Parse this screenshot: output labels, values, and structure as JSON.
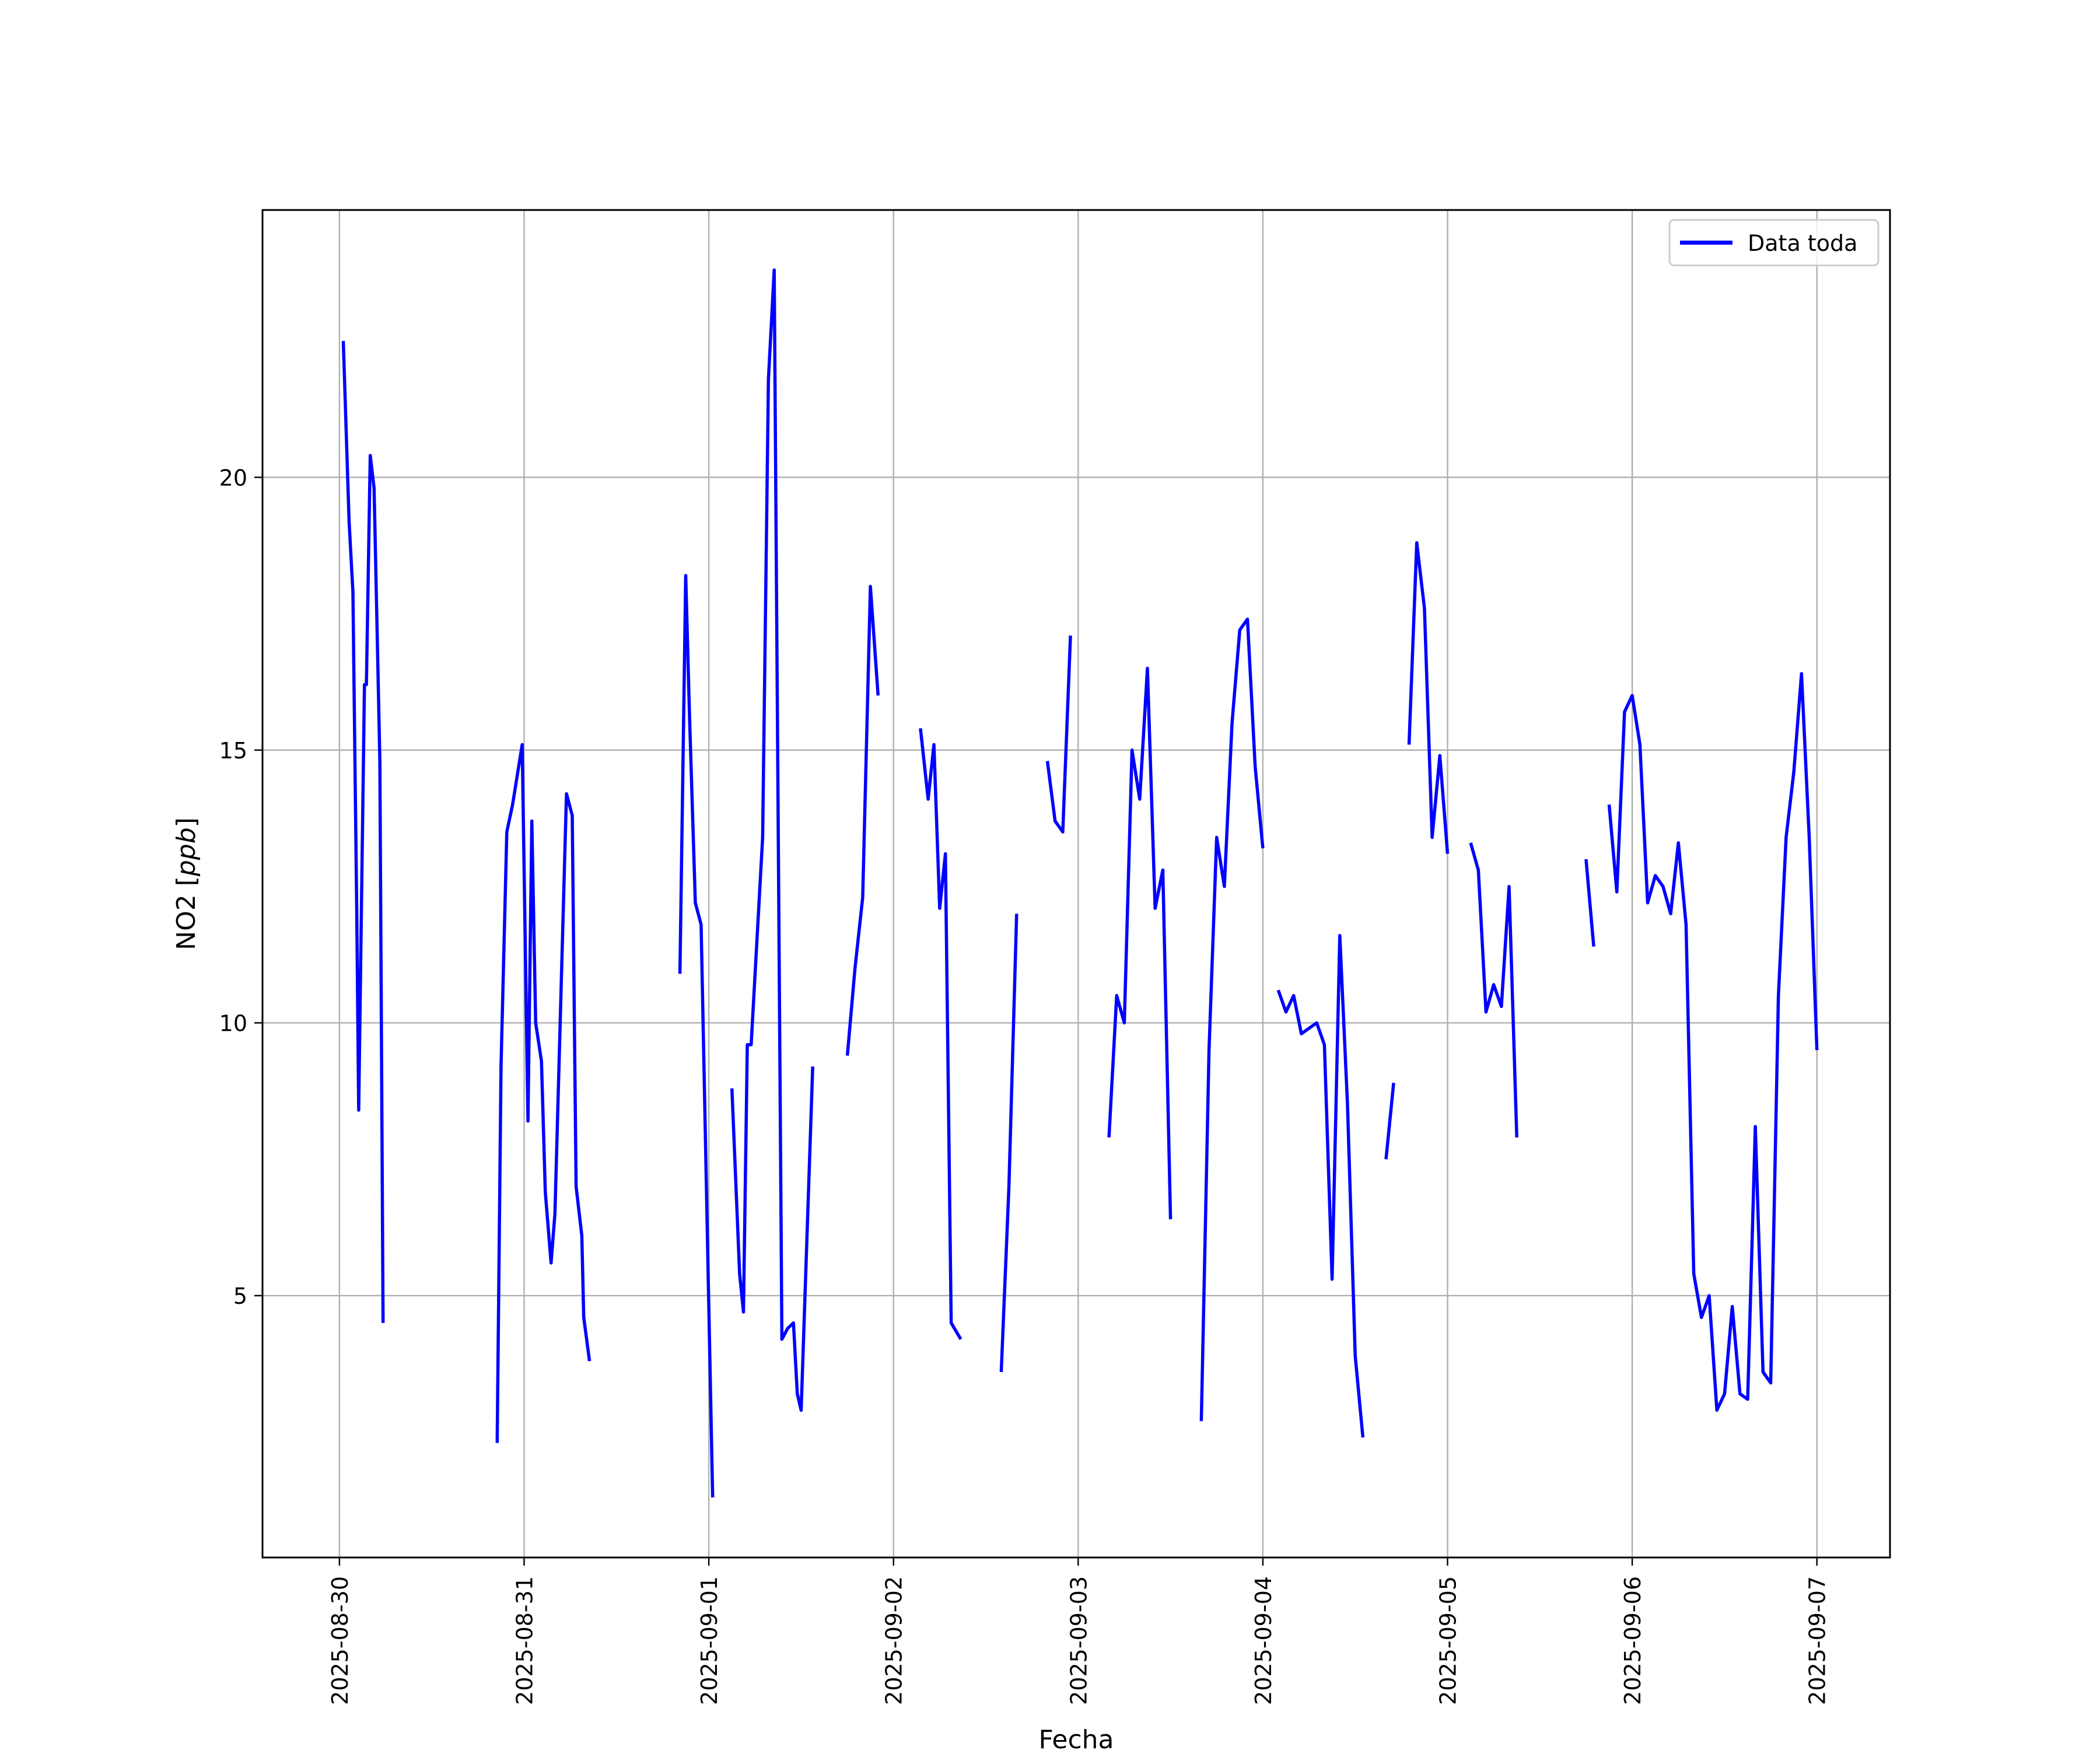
{
  "chart_data": {
    "type": "line",
    "title": "",
    "xlabel": "Fecha",
    "ylabel": "NO2 [ppb]",
    "ylabel_parts": {
      "main": "NO2 [",
      "unit": "ppb",
      "close": "]"
    },
    "x_ticks": [
      "2025-08-30",
      "2025-08-31",
      "2025-09-01",
      "2025-09-02",
      "2025-09-03",
      "2025-09-04",
      "2025-09-05",
      "2025-09-06",
      "2025-09-07"
    ],
    "y_ticks": [
      5,
      10,
      15,
      20
    ],
    "xlim": [
      "2025-08-29T14:00",
      "2025-09-07T09:30"
    ],
    "ylim": [
      0.2,
      24.9
    ],
    "grid": true,
    "legend_position": "top-right",
    "series": [
      {
        "name": "Data toda",
        "color": "#0000ff",
        "segments": [
          [
            [
              "2025-08-30T00:30",
              22.5
            ],
            [
              "2025-08-30T01:15",
              19.2
            ],
            [
              "2025-08-30T01:45",
              17.9
            ],
            [
              "2025-08-30T02:15",
              12.0
            ],
            [
              "2025-08-30T02:30",
              8.4
            ],
            [
              "2025-08-30T03:15",
              16.2
            ],
            [
              "2025-08-30T03:30",
              16.2
            ],
            [
              "2025-08-30T04:00",
              20.4
            ],
            [
              "2025-08-30T04:30",
              19.8
            ],
            [
              "2025-08-30T05:15",
              14.8
            ],
            [
              "2025-08-30T05:40",
              4.5
            ]
          ],
          [
            [
              "2025-08-30T20:30",
              2.3
            ],
            [
              "2025-08-30T21:00",
              9.2
            ],
            [
              "2025-08-30T21:45",
              13.5
            ],
            [
              "2025-08-30T22:30",
              14.0
            ],
            [
              "2025-08-30T23:45",
              15.1
            ],
            [
              "2025-08-31T00:30",
              8.2
            ],
            [
              "2025-08-31T01:00",
              13.7
            ],
            [
              "2025-08-31T01:30",
              10.0
            ],
            [
              "2025-08-31T02:15",
              9.3
            ],
            [
              "2025-08-31T02:45",
              6.9
            ],
            [
              "2025-08-31T03:30",
              5.6
            ],
            [
              "2025-08-31T04:00",
              6.5
            ],
            [
              "2025-08-31T05:30",
              14.2
            ],
            [
              "2025-08-31T06:15",
              13.8
            ],
            [
              "2025-08-31T06:45",
              7.0
            ],
            [
              "2025-08-31T07:30",
              6.1
            ],
            [
              "2025-08-31T07:45",
              4.6
            ],
            [
              "2025-08-31T08:30",
              3.8
            ]
          ],
          [
            [
              "2025-08-31T20:15",
              10.9
            ],
            [
              "2025-08-31T21:00",
              18.2
            ],
            [
              "2025-08-31T21:30",
              15.6
            ],
            [
              "2025-08-31T22:15",
              12.2
            ],
            [
              "2025-08-31T23:00",
              11.8
            ],
            [
              "2025-09-01T00:30",
              1.3
            ]
          ],
          [
            [
              "2025-09-01T03:00",
              8.8
            ],
            [
              "2025-09-01T04:00",
              5.4
            ],
            [
              "2025-09-01T04:30",
              4.7
            ],
            [
              "2025-09-01T05:00",
              9.6
            ],
            [
              "2025-09-01T05:30",
              9.6
            ],
            [
              "2025-09-01T07:00",
              13.4
            ],
            [
              "2025-09-01T07:45",
              21.8
            ],
            [
              "2025-09-01T08:30",
              23.8
            ],
            [
              "2025-09-01T09:30",
              4.2
            ],
            [
              "2025-09-01T10:15",
              4.4
            ],
            [
              "2025-09-01T11:00",
              4.5
            ],
            [
              "2025-09-01T11:30",
              3.2
            ],
            [
              "2025-09-01T12:00",
              2.9
            ],
            [
              "2025-09-01T13:30",
              9.2
            ]
          ],
          [
            [
              "2025-09-01T18:00",
              9.4
            ],
            [
              "2025-09-01T19:00",
              11.0
            ],
            [
              "2025-09-01T20:00",
              12.3
            ],
            [
              "2025-09-01T21:00",
              18.0
            ],
            [
              "2025-09-01T22:00",
              16.0
            ]
          ],
          [
            [
              "2025-09-02T03:30",
              15.4
            ],
            [
              "2025-09-02T04:30",
              14.1
            ],
            [
              "2025-09-02T05:15",
              15.1
            ],
            [
              "2025-09-02T06:00",
              12.1
            ],
            [
              "2025-09-02T06:45",
              13.1
            ],
            [
              "2025-09-02T07:30",
              4.5
            ],
            [
              "2025-09-02T08:45",
              4.2
            ]
          ],
          [
            [
              "2025-09-02T14:00",
              3.6
            ],
            [
              "2025-09-02T15:00",
              7.0
            ],
            [
              "2025-09-02T16:00",
              12.0
            ]
          ],
          [
            [
              "2025-09-02T20:00",
              14.8
            ],
            [
              "2025-09-02T21:00",
              13.7
            ],
            [
              "2025-09-02T22:00",
              13.5
            ],
            [
              "2025-09-02T23:00",
              17.1
            ]
          ],
          [
            [
              "2025-09-03T04:00",
              7.9
            ],
            [
              "2025-09-03T05:00",
              10.5
            ],
            [
              "2025-09-03T06:00",
              10.0
            ],
            [
              "2025-09-03T07:00",
              15.0
            ],
            [
              "2025-09-03T08:00",
              14.1
            ],
            [
              "2025-09-03T09:00",
              16.5
            ],
            [
              "2025-09-03T10:00",
              12.1
            ],
            [
              "2025-09-03T11:00",
              12.8
            ],
            [
              "2025-09-03T12:00",
              6.4
            ]
          ],
          [
            [
              "2025-09-03T16:00",
              2.7
            ],
            [
              "2025-09-03T17:00",
              9.5
            ],
            [
              "2025-09-03T18:00",
              13.4
            ],
            [
              "2025-09-03T19:00",
              12.5
            ],
            [
              "2025-09-03T20:00",
              15.5
            ],
            [
              "2025-09-03T21:00",
              17.2
            ],
            [
              "2025-09-03T22:00",
              17.4
            ],
            [
              "2025-09-03T23:00",
              14.7
            ],
            [
              "2025-09-04T00:00",
              13.2
            ]
          ],
          [
            [
              "2025-09-04T02:00",
              10.6
            ],
            [
              "2025-09-04T03:00",
              10.2
            ],
            [
              "2025-09-04T04:00",
              10.5
            ],
            [
              "2025-09-04T05:00",
              9.8
            ],
            [
              "2025-09-04T06:00",
              9.9
            ],
            [
              "2025-09-04T07:00",
              10.0
            ],
            [
              "2025-09-04T08:00",
              9.6
            ],
            [
              "2025-09-04T09:00",
              5.3
            ],
            [
              "2025-09-04T10:00",
              11.6
            ],
            [
              "2025-09-04T11:00",
              8.5
            ],
            [
              "2025-09-04T12:00",
              3.9
            ],
            [
              "2025-09-04T13:00",
              2.4
            ]
          ],
          [
            [
              "2025-09-04T16:00",
              7.5
            ],
            [
              "2025-09-04T17:00",
              8.9
            ]
          ],
          [
            [
              "2025-09-04T19:00",
              15.1
            ],
            [
              "2025-09-04T20:00",
              18.8
            ],
            [
              "2025-09-04T21:00",
              17.6
            ],
            [
              "2025-09-04T22:00",
              13.4
            ],
            [
              "2025-09-04T23:00",
              14.9
            ],
            [
              "2025-09-05T00:00",
              13.1
            ]
          ],
          [
            [
              "2025-09-05T03:00",
              13.3
            ],
            [
              "2025-09-05T04:00",
              12.8
            ],
            [
              "2025-09-05T05:00",
              10.2
            ],
            [
              "2025-09-05T06:00",
              10.7
            ],
            [
              "2025-09-05T07:00",
              10.3
            ],
            [
              "2025-09-05T08:00",
              12.5
            ],
            [
              "2025-09-05T09:00",
              7.9
            ]
          ],
          [
            [
              "2025-09-05T18:00",
              13.0
            ],
            [
              "2025-09-05T19:00",
              11.4
            ]
          ],
          [
            [
              "2025-09-05T21:00",
              14.0
            ],
            [
              "2025-09-05T22:00",
              12.4
            ],
            [
              "2025-09-05T23:00",
              15.7
            ],
            [
              "2025-09-06T00:00",
              16.0
            ],
            [
              "2025-09-06T01:00",
              15.1
            ],
            [
              "2025-09-06T02:00",
              12.2
            ],
            [
              "2025-09-06T03:00",
              12.7
            ],
            [
              "2025-09-06T04:00",
              12.5
            ],
            [
              "2025-09-06T05:00",
              12.0
            ],
            [
              "2025-09-06T06:00",
              13.3
            ],
            [
              "2025-09-06T07:00",
              11.8
            ],
            [
              "2025-09-06T08:00",
              5.4
            ],
            [
              "2025-09-06T09:00",
              4.6
            ],
            [
              "2025-09-06T10:00",
              5.0
            ],
            [
              "2025-09-06T11:00",
              2.9
            ],
            [
              "2025-09-06T12:00",
              3.2
            ],
            [
              "2025-09-06T13:00",
              4.8
            ],
            [
              "2025-09-06T14:00",
              3.2
            ],
            [
              "2025-09-06T15:00",
              3.1
            ],
            [
              "2025-09-06T16:00",
              8.1
            ],
            [
              "2025-09-06T17:00",
              3.6
            ],
            [
              "2025-09-06T18:00",
              3.4
            ],
            [
              "2025-09-06T19:00",
              10.5
            ],
            [
              "2025-09-06T20:00",
              13.4
            ],
            [
              "2025-09-06T21:00",
              14.6
            ],
            [
              "2025-09-06T22:00",
              16.4
            ],
            [
              "2025-09-06T23:00",
              13.4
            ],
            [
              "2025-09-07T00:00",
              9.5
            ]
          ]
        ]
      }
    ]
  }
}
